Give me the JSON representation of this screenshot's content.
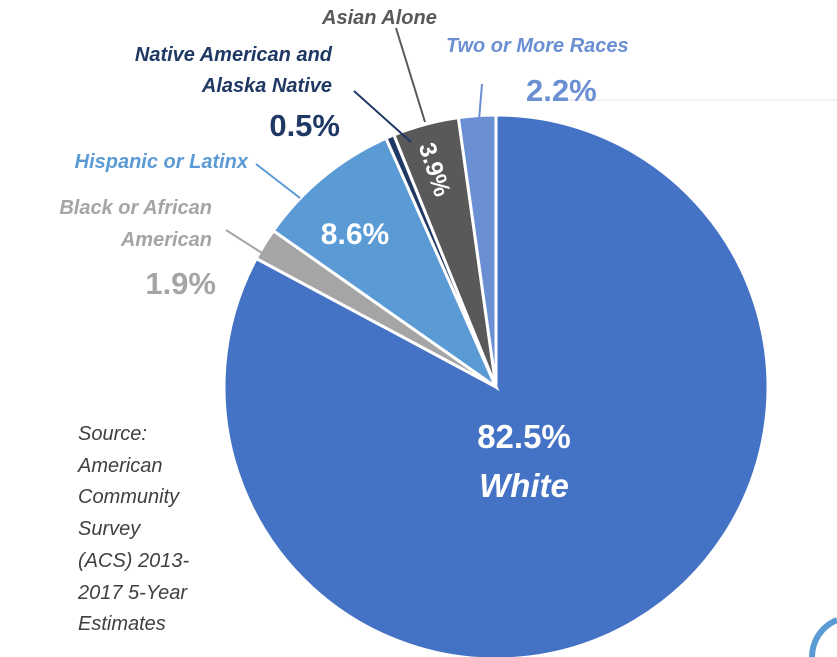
{
  "chart_data": {
    "type": "pie",
    "slices": [
      {
        "label": "White",
        "value": 82.5,
        "value_label": "82.5%",
        "color": "#4472C4"
      },
      {
        "label": "Black or African American",
        "value": 1.9,
        "value_label": "1.9%",
        "color": "#A5A5A5"
      },
      {
        "label": "Hispanic or Latinx",
        "value": 8.6,
        "value_label": "8.6%",
        "color": "#5B9BD5"
      },
      {
        "label": "Native American and Alaska Native",
        "value": 0.5,
        "value_label": "0.5%",
        "color": "#1F3864"
      },
      {
        "label": "Asian Alone",
        "value": 3.9,
        "value_label": "3.9%",
        "color": "#595959"
      },
      {
        "label": "Two or More Races",
        "value": 2.2,
        "value_label": "2.2%",
        "color": "#6A8FD2"
      }
    ],
    "label_colors": {
      "white_outside": "#4472C4",
      "black": "#A5A5A5",
      "hispanic": "#5B9BD5",
      "native": "#1F3864",
      "asian": "#595959",
      "two_or_more": "#6A8FD2"
    }
  },
  "labels": {
    "white_pct": "82.5%",
    "white_name": "White",
    "black_line1": "Black or African",
    "black_line2": "American",
    "black_pct": "1.9%",
    "hispanic_name": "Hispanic or Latinx",
    "hispanic_pct": "8.6%",
    "native_line1": "Native American and",
    "native_line2": "Alaska Native",
    "native_pct": "0.5%",
    "asian_name": "Asian Alone",
    "asian_pct": "3.9%",
    "two_name": "Two or More Races",
    "two_pct": "2.2%"
  },
  "source": {
    "lines": [
      "Source:",
      "American",
      "Community",
      "Survey",
      "(ACS) 2013-",
      "2017 5-Year",
      "Estimates"
    ]
  }
}
